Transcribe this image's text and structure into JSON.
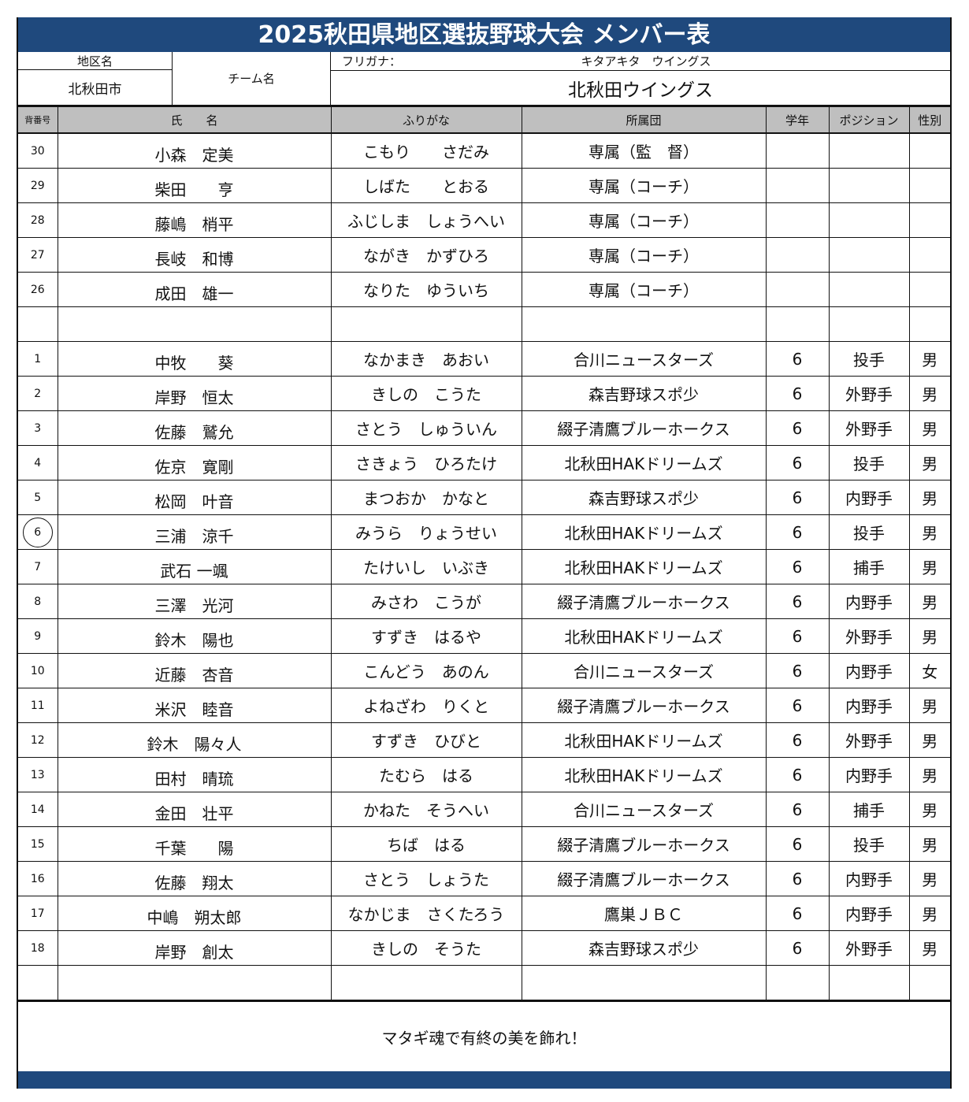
{
  "title": "2025秋田県地区選抜野球大会 メンバー表",
  "info": {
    "district_label": "地区名",
    "district": "北秋田市",
    "team_label": "チーム名",
    "furigana_label": "フリガナ：",
    "team_furigana": "キタアキタ　ウイングス",
    "team_name": "北秋田ウイングス"
  },
  "headers": [
    "背番号",
    "氏　　名",
    "ふりがな",
    "所属団",
    "学年",
    "ポジション",
    "性別"
  ],
  "circled_number": "6",
  "rows": [
    {
      "no": "30",
      "name": "小森　定美",
      "kana": "こもり　　さだみ",
      "team": "専属（監　督）",
      "grade": "",
      "pos": "",
      "sex": ""
    },
    {
      "no": "29",
      "name": "柴田　　亨",
      "kana": "しばた　　とおる",
      "team": "専属（コーチ）",
      "grade": "",
      "pos": "",
      "sex": ""
    },
    {
      "no": "28",
      "name": "藤嶋　梢平",
      "kana": "ふじしま　しょうへい",
      "team": "専属（コーチ）",
      "grade": "",
      "pos": "",
      "sex": ""
    },
    {
      "no": "27",
      "name": "長岐　和博",
      "kana": "ながき　かずひろ",
      "team": "専属（コーチ）",
      "grade": "",
      "pos": "",
      "sex": ""
    },
    {
      "no": "26",
      "name": "成田　雄一",
      "kana": "なりた　ゆういち",
      "team": "専属（コーチ）",
      "grade": "",
      "pos": "",
      "sex": ""
    },
    {
      "no": "",
      "name": "",
      "kana": "",
      "team": "",
      "grade": "",
      "pos": "",
      "sex": ""
    },
    {
      "no": "1",
      "name": "中牧　　葵",
      "kana": "なかまき　あおい",
      "team": "合川ニュースターズ",
      "grade": "6",
      "pos": "投手",
      "sex": "男"
    },
    {
      "no": "2",
      "name": "岸野　恒太",
      "kana": "きしの　こうた",
      "team": "森吉野球スポ少",
      "grade": "6",
      "pos": "外野手",
      "sex": "男"
    },
    {
      "no": "3",
      "name": "佐藤　鷲允",
      "kana": "さとう　しゅういん",
      "team": "綴子清鷹ブルーホークス",
      "grade": "6",
      "pos": "外野手",
      "sex": "男"
    },
    {
      "no": "4",
      "name": "佐京　寛剛",
      "kana": "さきょう　ひろたけ",
      "team": "北秋田HAKドリームズ",
      "grade": "6",
      "pos": "投手",
      "sex": "男"
    },
    {
      "no": "5",
      "name": "松岡　叶音",
      "kana": "まつおか　かなと",
      "team": "森吉野球スポ少",
      "grade": "6",
      "pos": "内野手",
      "sex": "男"
    },
    {
      "no": "6",
      "name": "三浦　涼千",
      "kana": "みうら　りょうせい",
      "team": "北秋田HAKドリームズ",
      "grade": "6",
      "pos": "投手",
      "sex": "男"
    },
    {
      "no": "7",
      "name": "武石 一颯",
      "kana": "たけいし　いぶき",
      "team": "北秋田HAKドリームズ",
      "grade": "6",
      "pos": "捕手",
      "sex": "男"
    },
    {
      "no": "8",
      "name": "三澤　光河",
      "kana": "みさわ　こうが",
      "team": "綴子清鷹ブルーホークス",
      "grade": "6",
      "pos": "内野手",
      "sex": "男"
    },
    {
      "no": "9",
      "name": "鈴木　陽也",
      "kana": "すずき　はるや",
      "team": "北秋田HAKドリームズ",
      "grade": "6",
      "pos": "外野手",
      "sex": "男"
    },
    {
      "no": "10",
      "name": "近藤　杏音",
      "kana": "こんどう　あのん",
      "team": "合川ニュースターズ",
      "grade": "6",
      "pos": "内野手",
      "sex": "女"
    },
    {
      "no": "11",
      "name": "米沢　睦音",
      "kana": "よねざわ　りくと",
      "team": "綴子清鷹ブルーホークス",
      "grade": "6",
      "pos": "内野手",
      "sex": "男"
    },
    {
      "no": "12",
      "name": "鈴木　陽々人",
      "kana": "すずき　ひびと",
      "team": "北秋田HAKドリームズ",
      "grade": "6",
      "pos": "外野手",
      "sex": "男"
    },
    {
      "no": "13",
      "name": "田村　晴琉",
      "kana": "たむら　はる",
      "team": "北秋田HAKドリームズ",
      "grade": "6",
      "pos": "内野手",
      "sex": "男"
    },
    {
      "no": "14",
      "name": "金田　壮平",
      "kana": "かねた　そうへい",
      "team": "合川ニュースターズ",
      "grade": "6",
      "pos": "捕手",
      "sex": "男"
    },
    {
      "no": "15",
      "name": "千葉　　陽",
      "kana": "ちば　はる",
      "team": "綴子清鷹ブルーホークス",
      "grade": "6",
      "pos": "投手",
      "sex": "男"
    },
    {
      "no": "16",
      "name": "佐藤　翔太",
      "kana": "さとう　しょうた",
      "team": "綴子清鷹ブルーホークス",
      "grade": "6",
      "pos": "内野手",
      "sex": "男"
    },
    {
      "no": "17",
      "name": "中嶋　朔太郎",
      "kana": "なかじま　さくたろう",
      "team": "鷹巣ＪＢＣ",
      "grade": "6",
      "pos": "内野手",
      "sex": "男"
    },
    {
      "no": "18",
      "name": "岸野　創太",
      "kana": "きしの　そうた",
      "team": "森吉野球スポ少",
      "grade": "6",
      "pos": "外野手",
      "sex": "男"
    },
    {
      "no": "",
      "name": "",
      "kana": "",
      "team": "",
      "grade": "",
      "pos": "",
      "sex": ""
    }
  ],
  "footer": "マタギ魂で有終の美を飾れ！",
  "colors": {
    "header_blue": "#1f497d",
    "header_gray": "#bfbfbf"
  }
}
